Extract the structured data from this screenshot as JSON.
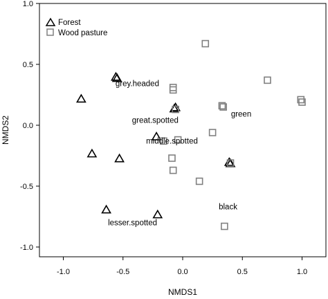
{
  "chart_data": {
    "type": "scatter",
    "title": "",
    "xlabel": "NMDS1",
    "ylabel": "NMDS2",
    "xlim": [
      -1.2,
      1.2
    ],
    "ylim": [
      -1.08,
      1.0
    ],
    "xticks": [
      -1.0,
      -0.5,
      0.0,
      0.5,
      1.0
    ],
    "xtick_labels": [
      "-1.0",
      "-0.5",
      "0.0",
      "0.5",
      "1.0"
    ],
    "yticks": [
      -1.0,
      -0.5,
      0.0,
      0.5,
      1.0
    ],
    "ytick_labels": [
      "-1.0",
      "-0.5",
      "0.0",
      "0.5",
      "1.0"
    ],
    "grid": false,
    "legend_position": "top-left",
    "series": [
      {
        "name": "Forest",
        "marker": "triangle",
        "color": "#000000",
        "points": [
          {
            "x": -0.56,
            "y": 0.4
          },
          {
            "x": -0.55,
            "y": 0.39
          },
          {
            "x": -0.85,
            "y": 0.22
          },
          {
            "x": -0.07,
            "y": 0.14
          },
          {
            "x": -0.06,
            "y": 0.15
          },
          {
            "x": -0.22,
            "y": -0.09
          },
          {
            "x": -0.76,
            "y": -0.23
          },
          {
            "x": -0.53,
            "y": -0.27
          },
          {
            "x": 0.39,
            "y": -0.3
          },
          {
            "x": 0.4,
            "y": -0.31
          },
          {
            "x": -0.64,
            "y": -0.69
          },
          {
            "x": -0.21,
            "y": -0.73
          }
        ]
      },
      {
        "name": "Wood pasture",
        "marker": "square",
        "color": "#808080",
        "points": [
          {
            "x": 0.19,
            "y": 0.67
          },
          {
            "x": 0.71,
            "y": 0.37
          },
          {
            "x": -0.08,
            "y": 0.31
          },
          {
            "x": -0.08,
            "y": 0.29
          },
          {
            "x": 0.99,
            "y": 0.21
          },
          {
            "x": 1.0,
            "y": 0.19
          },
          {
            "x": 0.33,
            "y": 0.16
          },
          {
            "x": 0.34,
            "y": 0.15
          },
          {
            "x": -0.06,
            "y": 0.13
          },
          {
            "x": 0.25,
            "y": -0.06
          },
          {
            "x": -0.16,
            "y": -0.13
          },
          {
            "x": -0.04,
            "y": -0.12
          },
          {
            "x": -0.09,
            "y": -0.27
          },
          {
            "x": -0.08,
            "y": -0.37
          },
          {
            "x": 0.4,
            "y": -0.31
          },
          {
            "x": 0.14,
            "y": -0.46
          },
          {
            "x": 0.35,
            "y": -0.83
          }
        ]
      }
    ],
    "annotations": [
      {
        "text": "grey.headed",
        "x": -0.38,
        "y": 0.32
      },
      {
        "text": "great.spotted",
        "x": -0.23,
        "y": 0.02
      },
      {
        "text": "green",
        "x": 0.49,
        "y": 0.07
      },
      {
        "text": "middle.spotted",
        "x": -0.09,
        "y": -0.15
      },
      {
        "text": "black",
        "x": 0.38,
        "y": -0.69
      },
      {
        "text": "lesser.spotted",
        "x": -0.42,
        "y": -0.82
      }
    ]
  }
}
